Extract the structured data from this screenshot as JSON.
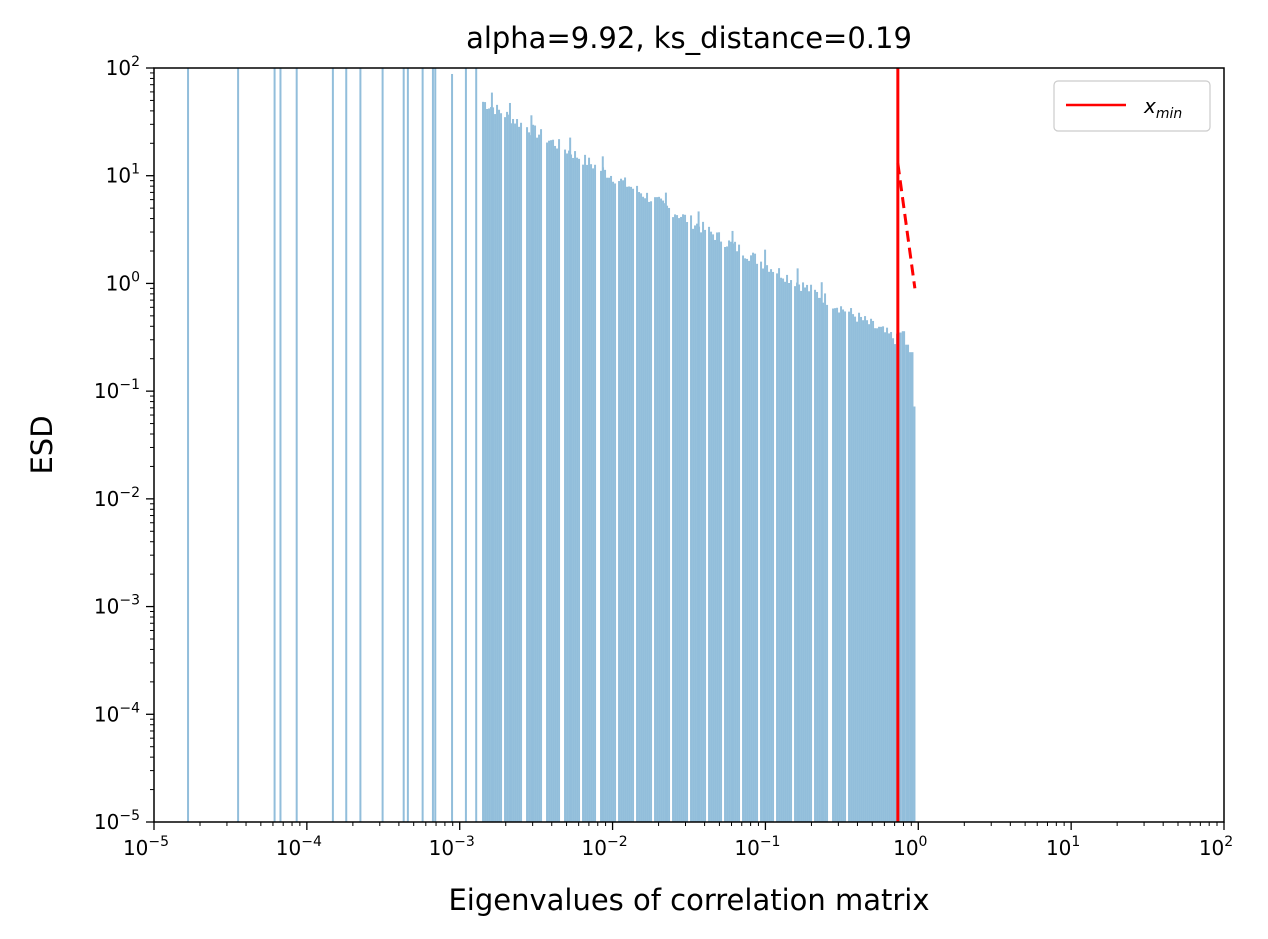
{
  "chart_data": {
    "type": "bar",
    "title": "alpha=9.92, ks_distance=0.19",
    "xlabel": "Eigenvalues of correlation matrix",
    "ylabel": "ESD",
    "xscale": "log",
    "yscale": "log",
    "xlim": [
      1e-05,
      100
    ],
    "ylim": [
      1e-05,
      100
    ],
    "x_ticks": [
      {
        "base": "10",
        "exp": "−5",
        "value": 1e-05
      },
      {
        "base": "10",
        "exp": "−4",
        "value": 0.0001
      },
      {
        "base": "10",
        "exp": "−3",
        "value": 0.001
      },
      {
        "base": "10",
        "exp": "−2",
        "value": 0.01
      },
      {
        "base": "10",
        "exp": "−1",
        "value": 0.1
      },
      {
        "base": "10",
        "exp": "0",
        "value": 1
      },
      {
        "base": "10",
        "exp": "1",
        "value": 10
      },
      {
        "base": "10",
        "exp": "2",
        "value": 100
      }
    ],
    "y_ticks": [
      {
        "base": "10",
        "exp": "−5",
        "value": 1e-05
      },
      {
        "base": "10",
        "exp": "−4",
        "value": 0.0001
      },
      {
        "base": "10",
        "exp": "−3",
        "value": 0.001
      },
      {
        "base": "10",
        "exp": "−2",
        "value": 0.01
      },
      {
        "base": "10",
        "exp": "−1",
        "value": 0.1
      },
      {
        "base": "10",
        "exp": "0",
        "value": 1
      },
      {
        "base": "10",
        "exp": "1",
        "value": 10
      },
      {
        "base": "10",
        "exp": "2",
        "value": 100
      }
    ],
    "histogram": {
      "color": "#92bedb",
      "isolated_bars": [
        {
          "x": 1.67e-05,
          "y": 100
        },
        {
          "x": 3.55e-05,
          "y": 100
        },
        {
          "x": 6.15e-05,
          "y": 100
        },
        {
          "x": 6.72e-05,
          "y": 100
        },
        {
          "x": 8.58e-05,
          "y": 100
        },
        {
          "x": 0.000148,
          "y": 100
        },
        {
          "x": 0.000181,
          "y": 100
        },
        {
          "x": 0.000224,
          "y": 100
        },
        {
          "x": 0.000313,
          "y": 100
        },
        {
          "x": 0.00043,
          "y": 100
        },
        {
          "x": 0.000458,
          "y": 100
        },
        {
          "x": 0.000572,
          "y": 100
        },
        {
          "x": 0.000668,
          "y": 100
        },
        {
          "x": 0.000692,
          "y": 100
        },
        {
          "x": 0.000891,
          "y": 88
        },
        {
          "x": 0.001098,
          "y": 100
        },
        {
          "x": 0.001282,
          "y": 100
        }
      ],
      "dense_region": {
        "x_start": 0.0014,
        "x_end": 0.95,
        "y_start": 50,
        "y_end": 0.3,
        "tail": [
          {
            "x": 0.74,
            "y": 0.35
          },
          {
            "x": 0.78,
            "y": 0.36
          },
          {
            "x": 0.82,
            "y": 0.27
          },
          {
            "x": 0.87,
            "y": 0.23
          },
          {
            "x": 0.93,
            "y": 0.072
          }
        ],
        "gaps": [
          0.0019,
          0.0026,
          0.0035,
          0.0046,
          0.0061,
          0.0079,
          0.0105,
          0.0138,
          0.0182,
          0.024,
          0.0315,
          0.0405,
          0.052,
          0.068,
          0.089,
          0.115,
          0.15,
          0.2,
          0.26,
          0.34
        ]
      }
    },
    "xmin_line": {
      "x": 0.735,
      "color": "#ff0000",
      "label": "x",
      "label_sub": "min"
    },
    "fit_line": {
      "x": [
        0.735,
        0.95
      ],
      "y": [
        13.0,
        0.9
      ],
      "style": "dashed",
      "color": "#ff0000"
    },
    "legend": {
      "position": "top-right"
    }
  }
}
